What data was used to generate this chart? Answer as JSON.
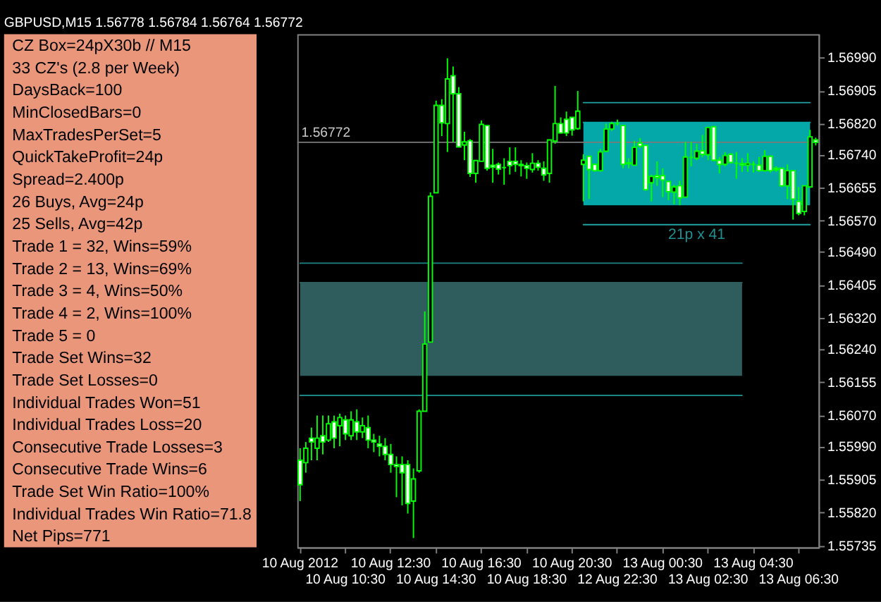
{
  "chart_data": [
    {
      "type": "other",
      "color": "#e9967a",
      "annotations": [
        "CZ Box=24pX30b // M15",
        "33 CZ's (2.8 per Week)",
        "DaysBack=100",
        "MinClosedBars=0",
        "MaxTradesPerSet=5",
        "QuickTakeProfit=24p",
        "Spread=2.400p",
        "26 Buys, Avg=24p",
        "25 Sells, Avg=42p",
        "Trade 1 = 32, Wins=59%",
        "Trade 2 = 13, Wins=69%",
        "Trade 3 = 4, Wins=50%",
        "Trade 4 = 2, Wins=100%",
        "Trade 5 = 0",
        "Trade Set Wins=32",
        "Trade Set Losses=0",
        "Individual Trades Won=51",
        "Individual Trades Loss=20",
        "Consecutive Trade Losses=3",
        "Consecutive Trade Wins=6",
        "Trade Set Win Ratio=100%",
        "Individual Trades Win Ratio=71.8",
        "Net Pips=771"
      ]
    },
    {
      "type": "candlestick",
      "title": "GBPUSD,M15 1.56778 1.56784 1.56764 1.56772",
      "color": "#00ff00",
      "categories": [
        "10 Aug 2012",
        null,
        null,
        null,
        null,
        null,
        null,
        null,
        "10 Aug 10:30",
        null,
        null,
        null,
        null,
        null,
        null,
        null,
        "10 Aug 12:30",
        null,
        null,
        null,
        null,
        null,
        null,
        null,
        "10 Aug 14:30",
        null,
        null,
        null,
        null,
        null,
        null,
        null,
        "10 Aug 16:30",
        null,
        null,
        null,
        null,
        null,
        null,
        null,
        "10 Aug 18:30",
        null,
        null,
        null,
        null,
        null,
        null,
        null,
        "10 Aug 20:30",
        null,
        null,
        null,
        null,
        null,
        null,
        null,
        "12 Aug 22:30",
        null,
        null,
        null,
        null,
        null,
        null,
        null,
        "13 Aug 00:30",
        null,
        null,
        null,
        null,
        null,
        null,
        null,
        "13 Aug 02:30",
        null,
        null,
        null,
        null,
        null,
        null,
        null,
        "13 Aug 04:30",
        null,
        null,
        null,
        null,
        null,
        null,
        null,
        "13 Aug 06:30",
        null,
        null,
        null
      ],
      "ohlc": [
        [
          1.55954,
          1.55985,
          1.55849,
          1.55891
        ],
        [
          1.55948,
          1.56001,
          1.55922,
          1.55985
        ],
        [
          1.56011,
          1.56038,
          1.55954,
          1.56001
        ],
        [
          1.55985,
          1.56069,
          1.55954,
          1.56011
        ],
        [
          1.56017,
          1.56069,
          1.55969,
          1.56001
        ],
        [
          1.56006,
          1.56069,
          1.56001,
          1.56048
        ],
        [
          1.56053,
          1.56069,
          1.55985,
          1.56011
        ],
        [
          1.56043,
          1.56074,
          1.5599,
          1.56064
        ],
        [
          1.56058,
          1.56069,
          1.56006,
          1.56022
        ],
        [
          1.56017,
          1.5608,
          1.56006,
          1.56058
        ],
        [
          1.56053,
          1.56085,
          1.56006,
          1.56027
        ],
        [
          1.56027,
          1.56064,
          1.56011,
          1.56043
        ],
        [
          1.56038,
          1.56069,
          1.55985,
          1.56006
        ],
        [
          1.56006,
          1.56022,
          1.55975,
          1.56001
        ],
        [
          1.55996,
          1.56017,
          1.55964,
          1.5599
        ],
        [
          1.5599,
          1.56011,
          1.55954,
          1.55969
        ],
        [
          1.55969,
          1.55996,
          1.55922,
          1.55943
        ],
        [
          1.55943,
          1.55964,
          1.55859,
          1.55938
        ],
        [
          1.55943,
          1.55964,
          1.55838,
          1.55922
        ],
        [
          1.55943,
          1.55954,
          1.55817,
          1.55843
        ],
        [
          1.55849,
          1.55933,
          1.55754,
          1.55906
        ],
        [
          1.55927,
          1.56085,
          1.55922,
          1.5608
        ],
        [
          1.5608,
          1.56337,
          1.5608,
          1.56253
        ],
        [
          1.56258,
          1.56643,
          1.56258,
          1.56633
        ],
        [
          1.56642,
          1.56879,
          1.56642,
          1.56867
        ],
        [
          1.56867,
          1.56883,
          1.56788,
          1.56822
        ],
        [
          1.5682,
          1.56988,
          1.56747,
          1.56935
        ],
        [
          1.56943,
          1.56967,
          1.56773,
          1.56897
        ],
        [
          1.56897,
          1.56914,
          1.5676,
          1.5676
        ],
        [
          1.56765,
          1.56799,
          1.56726,
          1.56773
        ],
        [
          1.56776,
          1.5678,
          1.56683,
          1.56692
        ],
        [
          1.56692,
          1.56725,
          1.56668,
          1.56725
        ],
        [
          1.56723,
          1.56828,
          1.56723,
          1.56818
        ],
        [
          1.56815,
          1.56815,
          1.56699,
          1.56705
        ],
        [
          1.56713,
          1.56755,
          1.56668,
          1.56708
        ],
        [
          1.56715,
          1.5672,
          1.56689,
          1.56703
        ],
        [
          1.56707,
          1.56731,
          1.56663,
          1.56707
        ],
        [
          1.56723,
          1.56759,
          1.56689,
          1.56712
        ],
        [
          1.56723,
          1.56759,
          1.56696,
          1.56715
        ],
        [
          1.56715,
          1.56726,
          1.56684,
          1.56712
        ],
        [
          1.56712,
          1.5672,
          1.56678,
          1.56705
        ],
        [
          1.56702,
          1.56744,
          1.56694,
          1.56718
        ],
        [
          1.56718,
          1.56726,
          1.56699,
          1.56708
        ],
        [
          1.56705,
          1.56723,
          1.56673,
          1.56688
        ],
        [
          1.56692,
          1.56778,
          1.56668,
          1.56778
        ],
        [
          1.56775,
          1.56917,
          1.56768,
          1.5682
        ],
        [
          1.5682,
          1.56836,
          1.56794,
          1.56796
        ],
        [
          1.56831,
          1.56851,
          1.56788,
          1.56796
        ],
        [
          1.56836,
          1.56836,
          1.56789,
          1.56804
        ],
        [
          1.56807,
          1.56904,
          1.56804,
          1.56852
        ],
        [
          1.56715,
          1.56741,
          1.5662,
          1.56726
        ],
        [
          1.56736,
          1.56736,
          1.56626,
          1.56702
        ],
        [
          1.56715,
          1.56717,
          1.56696,
          1.56699
        ],
        [
          1.56699,
          1.56755,
          1.56696,
          1.56747
        ],
        [
          1.56749,
          1.5682,
          1.56747,
          1.56806
        ],
        [
          1.56806,
          1.56825,
          1.56801,
          1.5682
        ],
        [
          1.5682,
          1.5683,
          1.56815,
          1.5682
        ],
        [
          1.56815,
          1.56815,
          1.56705,
          1.56715
        ],
        [
          1.56719,
          1.56731,
          1.56705,
          1.56717
        ],
        [
          1.56713,
          1.56776,
          1.56713,
          1.56759
        ],
        [
          1.5677,
          1.56783,
          1.56757,
          1.56762
        ],
        [
          1.56764,
          1.56764,
          1.56647,
          1.5665
        ],
        [
          1.56668,
          1.56689,
          1.5662,
          1.56684
        ],
        [
          1.56686,
          1.56723,
          1.5666,
          1.56681
        ],
        [
          1.56686,
          1.56705,
          1.56631,
          1.56675
        ],
        [
          1.56671,
          1.56671,
          1.56623,
          1.56645
        ],
        [
          1.56644,
          1.56663,
          1.56612,
          1.56657
        ],
        [
          1.5666,
          1.56673,
          1.5661,
          1.56629
        ],
        [
          1.56631,
          1.56773,
          1.56631,
          1.56734
        ],
        [
          1.56733,
          1.56773,
          1.5671,
          1.56733
        ],
        [
          1.56731,
          1.56768,
          1.56726,
          1.56749
        ],
        [
          1.5675,
          1.56791,
          1.56734,
          1.56741
        ],
        [
          1.5674,
          1.56812,
          1.56726,
          1.5681
        ],
        [
          1.56812,
          1.56812,
          1.56723,
          1.56726
        ],
        [
          1.56726,
          1.56734,
          1.56692,
          1.56715
        ],
        [
          1.56715,
          1.56747,
          1.5671,
          1.56738
        ],
        [
          1.56741,
          1.56744,
          1.56717,
          1.5672
        ],
        [
          1.56718,
          1.56747,
          1.56678,
          1.56718
        ],
        [
          1.56717,
          1.56731,
          1.56696,
          1.56713
        ],
        [
          1.56713,
          1.56744,
          1.56696,
          1.56718
        ],
        [
          1.56715,
          1.56723,
          1.56694,
          1.56715
        ],
        [
          1.56713,
          1.56734,
          1.56696,
          1.56699
        ],
        [
          1.56699,
          1.56752,
          1.56696,
          1.56736
        ],
        [
          1.56736,
          1.56738,
          1.56694,
          1.56699
        ],
        [
          1.56705,
          1.5671,
          1.56696,
          1.56701
        ],
        [
          1.56705,
          1.56705,
          1.56657,
          1.5666
        ],
        [
          1.5666,
          1.56715,
          1.56626,
          1.56699
        ],
        [
          1.56699,
          1.56699,
          1.56573,
          1.56626
        ],
        [
          1.5662,
          1.56657,
          1.56584,
          1.56589
        ],
        [
          1.56594,
          1.5666,
          1.56584,
          1.5666
        ],
        [
          1.56657,
          1.56804,
          1.56657,
          1.56786
        ],
        [
          1.56778,
          1.56784,
          1.56764,
          1.56772
        ]
      ],
      "series": [
        {
          "type": "line",
          "color": "#2f5d5d",
          "values": [
            1.56411,
            1.56411,
            1.56411,
            1.56411,
            1.56411,
            1.56411,
            1.56411,
            1.56411,
            1.56411,
            1.56411,
            1.56411,
            1.56411,
            1.56411,
            1.56411,
            1.56411,
            1.56411,
            1.56411,
            1.56411,
            1.56411,
            1.56411,
            1.56411,
            1.56411,
            1.56411,
            1.56411,
            1.56411,
            1.56411,
            1.56411,
            1.56411,
            1.56411,
            1.56411,
            1.56411,
            1.56411,
            1.56411,
            1.56411,
            1.56411,
            1.56411,
            1.56411,
            1.56411,
            1.56411,
            1.56411,
            1.56411,
            1.56411,
            1.56411,
            1.56411,
            1.56411,
            1.56411,
            1.56411,
            1.56411,
            1.56411,
            1.56411,
            1.56411,
            1.56411,
            1.56411,
            1.56411,
            1.56411,
            1.56411,
            1.56411,
            1.56411,
            1.56411,
            1.56411,
            1.56411,
            1.56411,
            1.56411,
            1.56411,
            1.56411,
            1.56411,
            1.56411,
            1.56411,
            1.56411,
            1.56411,
            1.56411,
            1.56411,
            1.56411,
            1.56411,
            1.56411,
            1.56411,
            1.56411,
            1.56411,
            1.56411,
            null,
            null,
            null,
            null,
            null,
            null,
            null,
            null,
            null,
            null,
            null,
            null,
            null
          ],
          "lower": [
            1.56171,
            1.56171,
            1.56171,
            1.56171,
            1.56171,
            1.56171,
            1.56171,
            1.56171,
            1.56171,
            1.56171,
            1.56171,
            1.56171,
            1.56171,
            1.56171,
            1.56171,
            1.56171,
            1.56171,
            1.56171,
            1.56171,
            1.56171,
            1.56171,
            1.56171,
            1.56171,
            1.56171,
            1.56171,
            1.56171,
            1.56171,
            1.56171,
            1.56171,
            1.56171,
            1.56171,
            1.56171,
            1.56171,
            1.56171,
            1.56171,
            1.56171,
            1.56171,
            1.56171,
            1.56171,
            1.56171,
            1.56171,
            1.56171,
            1.56171,
            1.56171,
            1.56171,
            1.56171,
            1.56171,
            1.56171,
            1.56171,
            1.56171,
            1.56171,
            1.56171,
            1.56171,
            1.56171,
            1.56171,
            1.56171,
            1.56171,
            1.56171,
            1.56171,
            1.56171,
            1.56171,
            1.56171,
            1.56171,
            1.56171,
            1.56171,
            1.56171,
            1.56171,
            1.56171,
            1.56171,
            1.56171,
            1.56171,
            1.56171,
            1.56171,
            1.56171,
            1.56171,
            1.56171,
            1.56171,
            1.56171,
            1.56171,
            null,
            null,
            null,
            null,
            null,
            null,
            null,
            null,
            null,
            null,
            null,
            null,
            null
          ],
          "upper": [
            1.56411,
            1.56411,
            1.56411,
            1.56411,
            1.56411,
            1.56411,
            1.56411,
            1.56411,
            1.56411,
            1.56411,
            1.56411,
            1.56411,
            1.56411,
            1.56411,
            1.56411,
            1.56411,
            1.56411,
            1.56411,
            1.56411,
            1.56411,
            1.56411,
            1.56411,
            1.56411,
            1.56411,
            1.56411,
            1.56411,
            1.56411,
            1.56411,
            1.56411,
            1.56411,
            1.56411,
            1.56411,
            1.56411,
            1.56411,
            1.56411,
            1.56411,
            1.56411,
            1.56411,
            1.56411,
            1.56411,
            1.56411,
            1.56411,
            1.56411,
            1.56411,
            1.56411,
            1.56411,
            1.56411,
            1.56411,
            1.56411,
            1.56411,
            1.56411,
            1.56411,
            1.56411,
            1.56411,
            1.56411,
            1.56411,
            1.56411,
            1.56411,
            1.56411,
            1.56411,
            1.56411,
            1.56411,
            1.56411,
            1.56411,
            1.56411,
            1.56411,
            1.56411,
            1.56411,
            1.56411,
            1.56411,
            1.56411,
            1.56411,
            1.56411,
            1.56411,
            1.56411,
            1.56411,
            1.56411,
            1.56411,
            1.56411,
            null,
            null,
            null,
            null,
            null,
            null,
            null,
            null,
            null,
            null,
            null,
            null,
            null
          ]
        },
        {
          "type": "line",
          "color": "#05a8a8",
          "values": [
            null,
            null,
            null,
            null,
            null,
            null,
            null,
            null,
            null,
            null,
            null,
            null,
            null,
            null,
            null,
            null,
            null,
            null,
            null,
            null,
            null,
            null,
            null,
            null,
            null,
            null,
            null,
            null,
            null,
            null,
            null,
            null,
            null,
            null,
            null,
            null,
            null,
            null,
            null,
            null,
            null,
            null,
            null,
            null,
            null,
            null,
            null,
            null,
            null,
            null,
            1.56823,
            1.56823,
            1.56823,
            1.56823,
            1.56823,
            1.56823,
            1.56823,
            1.56823,
            1.56823,
            1.56823,
            1.56823,
            1.56823,
            1.56823,
            1.56823,
            1.56823,
            1.56823,
            1.56823,
            1.56823,
            1.56823,
            1.56823,
            1.56823,
            1.56823,
            1.56823,
            1.56823,
            1.56823,
            1.56823,
            1.56823,
            1.56823,
            1.56823,
            1.56823,
            1.56823,
            1.56823,
            1.56823,
            1.56823,
            1.56823,
            1.56823,
            1.56823,
            1.56823,
            1.56823,
            1.56823,
            1.56823,
            null
          ],
          "lower": [
            null,
            null,
            null,
            null,
            null,
            null,
            null,
            null,
            null,
            null,
            null,
            null,
            null,
            null,
            null,
            null,
            null,
            null,
            null,
            null,
            null,
            null,
            null,
            null,
            null,
            null,
            null,
            null,
            null,
            null,
            null,
            null,
            null,
            null,
            null,
            null,
            null,
            null,
            null,
            null,
            null,
            null,
            null,
            null,
            null,
            null,
            null,
            null,
            null,
            null,
            1.5661,
            1.5661,
            1.5661,
            1.5661,
            1.5661,
            1.5661,
            1.5661,
            1.5661,
            1.5661,
            1.5661,
            1.5661,
            1.5661,
            1.5661,
            1.5661,
            1.5661,
            1.5661,
            1.5661,
            1.5661,
            1.5661,
            1.5661,
            1.5661,
            1.5661,
            1.5661,
            1.5661,
            1.5661,
            1.5661,
            1.5661,
            1.5661,
            1.5661,
            1.5661,
            1.5661,
            1.5661,
            1.5661,
            1.5661,
            1.5661,
            1.5661,
            1.5661,
            1.5661,
            1.5661,
            1.5661,
            1.5661,
            null
          ],
          "upper": [
            null,
            null,
            null,
            null,
            null,
            null,
            null,
            null,
            null,
            null,
            null,
            null,
            null,
            null,
            null,
            null,
            null,
            null,
            null,
            null,
            null,
            null,
            null,
            null,
            null,
            null,
            null,
            null,
            null,
            null,
            null,
            null,
            null,
            null,
            null,
            null,
            null,
            null,
            null,
            null,
            null,
            null,
            null,
            null,
            null,
            null,
            null,
            null,
            null,
            null,
            1.56823,
            1.56823,
            1.56823,
            1.56823,
            1.56823,
            1.56823,
            1.56823,
            1.56823,
            1.56823,
            1.56823,
            1.56823,
            1.56823,
            1.56823,
            1.56823,
            1.56823,
            1.56823,
            1.56823,
            1.56823,
            1.56823,
            1.56823,
            1.56823,
            1.56823,
            1.56823,
            1.56823,
            1.56823,
            1.56823,
            1.56823,
            1.56823,
            1.56823,
            1.56823,
            1.56823,
            1.56823,
            1.56823,
            1.56823,
            1.56823,
            1.56823,
            1.56823,
            1.56823,
            1.56823,
            1.56823,
            1.56823,
            null
          ]
        },
        {
          "type": "line",
          "color": "#1a8585",
          "values": [
            1.56461,
            1.56461,
            1.56461,
            1.56461,
            1.56461,
            1.56461,
            1.56461,
            1.56461,
            1.56461,
            1.56461,
            1.56461,
            1.56461,
            1.56461,
            1.56461,
            1.56461,
            1.56461,
            1.56461,
            1.56461,
            1.56461,
            1.56461,
            1.56461,
            1.56461,
            1.56461,
            1.56461,
            1.56461,
            1.56461,
            1.56461,
            1.56461,
            1.56461,
            1.56461,
            1.56461,
            1.56461,
            1.56461,
            1.56461,
            1.56461,
            1.56461,
            1.56461,
            1.56461,
            1.56461,
            1.56461,
            1.56461,
            1.56461,
            1.56461,
            1.56461,
            1.56461,
            1.56461,
            1.56461,
            1.56461,
            1.56461,
            1.56461,
            1.56461,
            1.56461,
            1.56461,
            1.56461,
            1.56461,
            1.56461,
            1.56461,
            1.56461,
            1.56461,
            1.56461,
            1.56461,
            1.56461,
            1.56461,
            1.56461,
            1.56461,
            1.56461,
            1.56461,
            1.56461,
            1.56461,
            1.56461,
            1.56461,
            1.56461,
            1.56461,
            1.56461,
            1.56461,
            1.56461,
            1.56461,
            1.56461,
            1.56461,
            null,
            null,
            null,
            null,
            null,
            null,
            null,
            null,
            null,
            null,
            null,
            null,
            null
          ]
        },
        {
          "type": "line",
          "color": "#1a8585",
          "values": [
            1.56121,
            1.56121,
            1.56121,
            1.56121,
            1.56121,
            1.56121,
            1.56121,
            1.56121,
            1.56121,
            1.56121,
            1.56121,
            1.56121,
            1.56121,
            1.56121,
            1.56121,
            1.56121,
            1.56121,
            1.56121,
            1.56121,
            1.56121,
            1.56121,
            1.56121,
            1.56121,
            1.56121,
            1.56121,
            1.56121,
            1.56121,
            1.56121,
            1.56121,
            1.56121,
            1.56121,
            1.56121,
            1.56121,
            1.56121,
            1.56121,
            1.56121,
            1.56121,
            1.56121,
            1.56121,
            1.56121,
            1.56121,
            1.56121,
            1.56121,
            1.56121,
            1.56121,
            1.56121,
            1.56121,
            1.56121,
            1.56121,
            1.56121,
            1.56121,
            1.56121,
            1.56121,
            1.56121,
            1.56121,
            1.56121,
            1.56121,
            1.56121,
            1.56121,
            1.56121,
            1.56121,
            1.56121,
            1.56121,
            1.56121,
            1.56121,
            1.56121,
            1.56121,
            1.56121,
            1.56121,
            1.56121,
            1.56121,
            1.56121,
            1.56121,
            1.56121,
            1.56121,
            1.56121,
            1.56121,
            1.56121,
            1.56121,
            null,
            null,
            null,
            null,
            null,
            null,
            null,
            null,
            null,
            null,
            null,
            null,
            null
          ]
        },
        {
          "type": "line",
          "color": "#22a3a3",
          "values": [
            null,
            null,
            null,
            null,
            null,
            null,
            null,
            null,
            null,
            null,
            null,
            null,
            null,
            null,
            null,
            null,
            null,
            null,
            null,
            null,
            null,
            null,
            null,
            null,
            null,
            null,
            null,
            null,
            null,
            null,
            null,
            null,
            null,
            null,
            null,
            null,
            null,
            null,
            null,
            null,
            null,
            null,
            null,
            null,
            null,
            null,
            null,
            null,
            null,
            null,
            1.56874,
            1.56874,
            1.56874,
            1.56874,
            1.56874,
            1.56874,
            1.56874,
            1.56874,
            1.56874,
            1.56874,
            1.56874,
            1.56874,
            1.56874,
            1.56874,
            1.56874,
            1.56874,
            1.56874,
            1.56874,
            1.56874,
            1.56874,
            1.56874,
            1.56874,
            1.56874,
            1.56874,
            1.56874,
            1.56874,
            1.56874,
            1.56874,
            1.56874,
            1.56874,
            1.56874,
            1.56874,
            1.56874,
            1.56874,
            1.56874,
            1.56874,
            1.56874,
            1.56874,
            1.56874,
            1.56874,
            1.56874,
            null
          ]
        },
        {
          "type": "line",
          "color": "#22a3a3",
          "values": [
            null,
            null,
            null,
            null,
            null,
            null,
            null,
            null,
            null,
            null,
            null,
            null,
            null,
            null,
            null,
            null,
            null,
            null,
            null,
            null,
            null,
            null,
            null,
            null,
            null,
            null,
            null,
            null,
            null,
            null,
            null,
            null,
            null,
            null,
            null,
            null,
            null,
            null,
            null,
            null,
            null,
            null,
            null,
            null,
            null,
            null,
            null,
            null,
            null,
            null,
            1.5656,
            1.5656,
            1.5656,
            1.5656,
            1.5656,
            1.5656,
            1.5656,
            1.5656,
            1.5656,
            1.5656,
            1.5656,
            1.5656,
            1.5656,
            1.5656,
            1.5656,
            1.5656,
            1.5656,
            1.5656,
            1.5656,
            1.5656,
            1.5656,
            1.5656,
            1.5656,
            1.5656,
            1.5656,
            1.5656,
            1.5656,
            1.5656,
            1.5656,
            1.5656,
            1.5656,
            1.5656,
            1.5656,
            1.5656,
            1.5656,
            1.5656,
            1.5656,
            1.5656,
            1.5656,
            1.5656,
            1.5656,
            null
          ]
        }
      ],
      "ylim": [
        1.5573,
        1.5705
      ],
      "yticks": [
        {
          "value": 1.5699,
          "label": "1.56990"
        },
        1.56905,
        {
          "value": 1.5682,
          "label": "1.56820"
        },
        {
          "value": 1.5674,
          "label": "1.56740"
        },
        1.56655,
        {
          "value": 1.5657,
          "label": "1.56570"
        },
        {
          "value": 1.5649,
          "label": "1.56490"
        },
        1.56405,
        {
          "value": 1.5632,
          "label": "1.56320"
        },
        {
          "value": 1.5624,
          "label": "1.56240"
        },
        1.56155,
        {
          "value": 1.5607,
          "label": "1.56070"
        },
        {
          "value": 1.5599,
          "label": "1.55990"
        },
        1.55905,
        {
          "value": 1.5582,
          "label": "1.55820"
        },
        1.55735
      ],
      "ref_lines": [
        {
          "axis": "y",
          "value": 1.56772,
          "label": "1.56772",
          "color": "#7a7a7a"
        }
      ],
      "annotations": [
        "21p x 41"
      ]
    }
  ]
}
